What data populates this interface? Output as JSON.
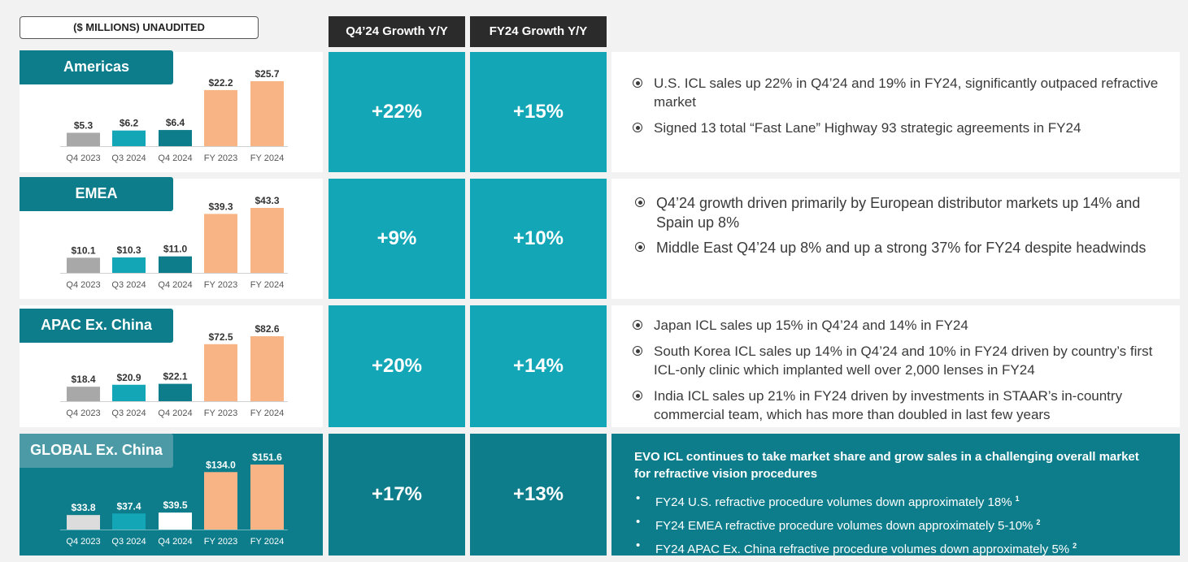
{
  "header": {
    "unaudited_label": "($ MILLIONS) UNAUDITED",
    "col_q4_growth": "Q4’24 Growth Y/Y",
    "col_fy_growth": "FY24 Growth Y/Y"
  },
  "colors": {
    "grey_bar": "#a8a8a8",
    "teal_bar": "#12a6b6",
    "dark_teal_bar": "#0e7d8b",
    "orange_bar": "#f9b486",
    "region_tab": "#0e7d8b",
    "global_panel": "#0e7d8b"
  },
  "regions": [
    {
      "name": "Americas",
      "q4_growth": "+22%",
      "fy_growth": "+15%",
      "bullets": [
        "U.S. ICL sales up 22% in Q4’24 and 19% in FY24, significantly outpaced refractive market",
        "Signed 13 total “Fast Lane” Highway 93 strategic agreements in FY24"
      ]
    },
    {
      "name": "EMEA",
      "q4_growth": "+9%",
      "fy_growth": "+10%",
      "bullets": [
        "Q4’24 growth driven primarily by European distributor markets up 14% and Spain up 8%",
        "Middle East Q4’24 up 8% and up a strong 37% for FY24 despite headwinds"
      ]
    },
    {
      "name": "APAC Ex. China",
      "q4_growth": "+20%",
      "fy_growth": "+14%",
      "bullets": [
        "Japan ICL sales up 15% in Q4’24 and 14% in FY24",
        "South Korea ICL sales up 14% in Q4’24 and 10% in FY24 driven by country’s first ICL-only clinic which implanted well over 2,000 lenses in FY24",
        "India ICL sales up 21% in FY24 driven by investments in STAAR’s in-country commercial team, which has more than doubled in last few years"
      ]
    },
    {
      "name": "GLOBAL Ex. China",
      "q4_growth": "+17%",
      "fy_growth": "+13%",
      "headline": "EVO ICL continues to take market share and grow sales in a challenging overall market for refractive vision procedures",
      "bullets": [
        {
          "text": "FY24 U.S. refractive procedure volumes down approximately 18%",
          "note": "1"
        },
        {
          "text": "FY24 EMEA refractive procedure volumes down approximately 5-10%",
          "note": "2"
        },
        {
          "text": "FY24 APAC Ex. China refractive procedure volumes down approximately 5%",
          "note": "2"
        }
      ],
      "bullet_char": "•"
    }
  ],
  "chart_data": [
    {
      "type": "bar",
      "title": "Americas",
      "categories": [
        "Q4 2023",
        "Q3 2024",
        "Q4 2024",
        "FY 2023",
        "FY 2024"
      ],
      "values": [
        5.3,
        6.2,
        6.4,
        22.2,
        25.7
      ],
      "labels": [
        "$5.3",
        "$6.2",
        "$6.4",
        "$22.2",
        "$25.7"
      ],
      "unit": "$ millions"
    },
    {
      "type": "bar",
      "title": "EMEA",
      "categories": [
        "Q4 2023",
        "Q3 2024",
        "Q4 2024",
        "FY 2023",
        "FY 2024"
      ],
      "values": [
        10.1,
        10.3,
        11.0,
        39.3,
        43.3
      ],
      "labels": [
        "$10.1",
        "$10.3",
        "$11.0",
        "$39.3",
        "$43.3"
      ],
      "unit": "$ millions"
    },
    {
      "type": "bar",
      "title": "APAC Ex. China",
      "categories": [
        "Q4 2023",
        "Q3 2024",
        "Q4 2024",
        "FY 2023",
        "FY 2024"
      ],
      "values": [
        18.4,
        20.9,
        22.1,
        72.5,
        82.6
      ],
      "labels": [
        "$18.4",
        "$20.9",
        "$22.1",
        "$72.5",
        "$82.6"
      ],
      "unit": "$ millions"
    },
    {
      "type": "bar",
      "title": "GLOBAL Ex. China",
      "categories": [
        "Q4 2023",
        "Q3 2024",
        "Q4 2024",
        "FY 2023",
        "FY 2024"
      ],
      "values": [
        33.8,
        37.4,
        39.5,
        134.0,
        151.6
      ],
      "labels": [
        "$33.8",
        "$37.4",
        "$39.5",
        "$134.0",
        "$151.6"
      ],
      "unit": "$ millions"
    }
  ]
}
